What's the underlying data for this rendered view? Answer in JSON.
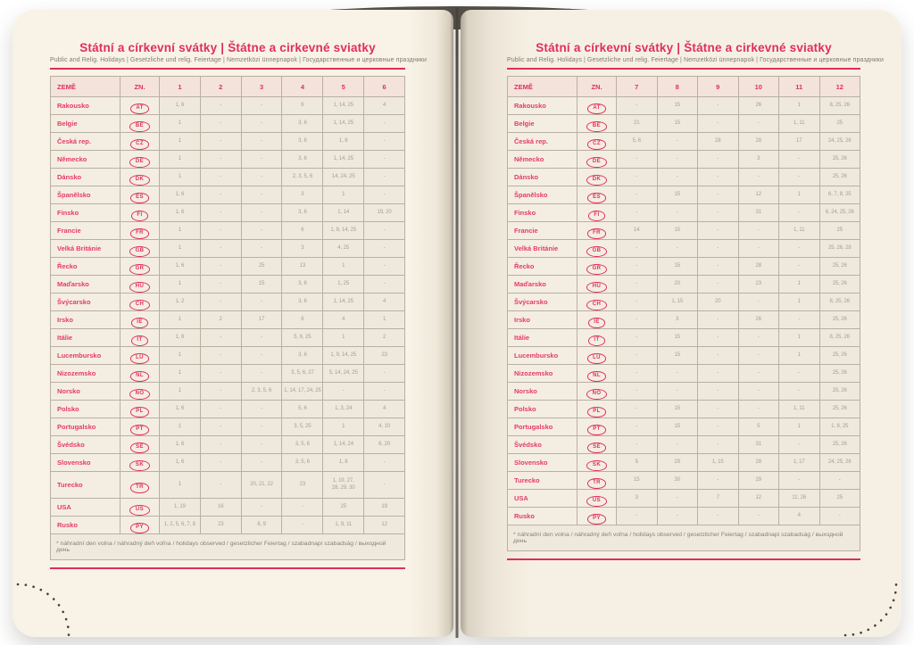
{
  "title": "Státní a církevní svátky | Štátne a cirkevné sviatky",
  "subtitle": "Public and Relig. Holidays | Gesetzliche und relig. Feiertage | Nemzetközi ünnepnapok | Государственные и церковные праздники",
  "footnote": "* náhradní den volna / náhradný deň voľna / holidays observed / gesetzlicher Feiertag / szabadnapi szabadság / выходной день",
  "colors": {
    "accent_pink": "#e0305b",
    "page_cream": "#f8f2e7",
    "value_grey": "#a49d90"
  },
  "table": {
    "country_header": "ZEMĚ",
    "code_header": "ZN.",
    "months_left": [
      "1",
      "2",
      "3",
      "4",
      "5",
      "6"
    ],
    "months_right": [
      "7",
      "8",
      "9",
      "10",
      "11",
      "12"
    ],
    "rows": [
      {
        "name": "Rakousko",
        "code": "AT",
        "months": [
          "1, 6",
          "-",
          "-",
          "6",
          "1, 14, 25",
          "4",
          "-",
          "15",
          "-",
          "26",
          "1",
          "8, 25, 26"
        ]
      },
      {
        "name": "Belgie",
        "code": "BE",
        "months": [
          "1",
          "-",
          "-",
          "3, 6",
          "1, 14, 25",
          "-",
          "21",
          "15",
          "-",
          "-",
          "1, 11",
          "25"
        ]
      },
      {
        "name": "Česká rep.",
        "code": "CZ",
        "months": [
          "1",
          "-",
          "-",
          "3, 6",
          "1, 8",
          "-",
          "5, 6",
          "-",
          "28",
          "28",
          "17",
          "24, 25, 26"
        ]
      },
      {
        "name": "Německo",
        "code": "DE",
        "months": [
          "1",
          "-",
          "-",
          "3, 6",
          "1, 14, 25",
          "-",
          "-",
          "-",
          "-",
          "3",
          "-",
          "25, 26"
        ]
      },
      {
        "name": "Dánsko",
        "code": "DK",
        "months": [
          "1",
          "-",
          "-",
          "2, 3, 5, 6",
          "14, 24, 25",
          "-",
          "-",
          "-",
          "-",
          "-",
          "-",
          "25, 26"
        ]
      },
      {
        "name": "Španělsko",
        "code": "ES",
        "months": [
          "1, 6",
          "-",
          "-",
          "3",
          "1",
          "-",
          "-",
          "15",
          "-",
          "12",
          "1",
          "6, 7, 8, 25"
        ]
      },
      {
        "name": "Finsko",
        "code": "FI",
        "months": [
          "1, 6",
          "-",
          "-",
          "3, 6",
          "1, 14",
          "19, 20",
          "-",
          "-",
          "-",
          "31",
          "-",
          "6, 24, 25, 26"
        ]
      },
      {
        "name": "Francie",
        "code": "FR",
        "months": [
          "1",
          "-",
          "-",
          "6",
          "1, 8, 14, 25",
          "-",
          "14",
          "15",
          "-",
          "-",
          "1, 11",
          "25"
        ]
      },
      {
        "name": "Velká Británie",
        "code": "GB",
        "months": [
          "1",
          "-",
          "-",
          "3",
          "4, 25",
          "-",
          "-",
          "-",
          "-",
          "-",
          "-",
          "25, 26, 28"
        ]
      },
      {
        "name": "Řecko",
        "code": "GR",
        "months": [
          "1, 6",
          "-",
          "25",
          "13",
          "1",
          "-",
          "-",
          "15",
          "-",
          "28",
          "-",
          "25, 26"
        ]
      },
      {
        "name": "Maďarsko",
        "code": "HU",
        "months": [
          "1",
          "-",
          "15",
          "3, 6",
          "1, 25",
          "-",
          "-",
          "20",
          "-",
          "23",
          "1",
          "25, 26"
        ]
      },
      {
        "name": "Švýcarsko",
        "code": "CH",
        "months": [
          "1, 2",
          "-",
          "-",
          "3, 6",
          "1, 14, 25",
          "4",
          "-",
          "1, 15",
          "20",
          "-",
          "1",
          "8, 25, 26"
        ]
      },
      {
        "name": "Irsko",
        "code": "IE",
        "months": [
          "1",
          "2",
          "17",
          "6",
          "4",
          "1",
          "-",
          "3",
          "-",
          "26",
          "-",
          "25, 26"
        ]
      },
      {
        "name": "Itálie",
        "code": "IT",
        "months": [
          "1, 6",
          "-",
          "-",
          "5, 6, 25",
          "1",
          "2",
          "-",
          "15",
          "-",
          "-",
          "1",
          "8, 25, 26"
        ]
      },
      {
        "name": "Lucembursko",
        "code": "LU",
        "months": [
          "1",
          "-",
          "-",
          "3, 6",
          "1, 9, 14, 25",
          "23",
          "-",
          "15",
          "-",
          "-",
          "1",
          "25, 26"
        ]
      },
      {
        "name": "Nizozemsko",
        "code": "NL",
        "months": [
          "1",
          "-",
          "-",
          "3, 5, 6, 27",
          "5, 14, 24, 25",
          "-",
          "-",
          "-",
          "-",
          "-",
          "-",
          "25, 26"
        ]
      },
      {
        "name": "Norsko",
        "code": "NO",
        "months": [
          "1",
          "-",
          "2, 3, 5, 6",
          "1, 14, 17, 24, 25",
          "-",
          "-",
          "-",
          "-",
          "-",
          "-",
          "-",
          "25, 26"
        ]
      },
      {
        "name": "Polsko",
        "code": "PL",
        "months": [
          "1, 6",
          "-",
          "-",
          "5, 6",
          "1, 3, 24",
          "4",
          "-",
          "15",
          "-",
          "-",
          "1, 11",
          "25, 26"
        ]
      },
      {
        "name": "Portugalsko",
        "code": "PT",
        "months": [
          "1",
          "-",
          "-",
          "3, 5, 25",
          "1",
          "4, 10",
          "-",
          "15",
          "-",
          "5",
          "1",
          "1, 8, 25"
        ]
      },
      {
        "name": "Švédsko",
        "code": "SE",
        "months": [
          "1, 6",
          "-",
          "-",
          "3, 5, 6",
          "1, 14, 24",
          "6, 20",
          "-",
          "-",
          "-",
          "31",
          "-",
          "25, 26"
        ]
      },
      {
        "name": "Slovensko",
        "code": "SK",
        "months": [
          "1, 6",
          "-",
          "-",
          "3, 5, 6",
          "1, 8",
          "-",
          "5",
          "29",
          "1, 15",
          "28",
          "1, 17",
          "24, 25, 26"
        ]
      },
      {
        "name": "Turecko",
        "code": "TR",
        "months": [
          "1",
          "-",
          "20, 21, 22",
          "23",
          "1, 19, 27,\n28, 29, 30",
          "-",
          "15",
          "30",
          "-",
          "29",
          "-",
          "-"
        ]
      },
      {
        "name": "USA",
        "code": "US",
        "months": [
          "1, 19",
          "16",
          "-",
          "-",
          "25",
          "19",
          "3",
          "-",
          "7",
          "12",
          "11, 26",
          "25"
        ]
      },
      {
        "name": "Rusko",
        "code": "PY",
        "months": [
          "1, 2, 5, 6, 7, 8",
          "23",
          "8, 9",
          "-",
          "1, 9, 11",
          "12",
          "-",
          "-",
          "-",
          "-",
          "4",
          "-"
        ]
      }
    ]
  }
}
